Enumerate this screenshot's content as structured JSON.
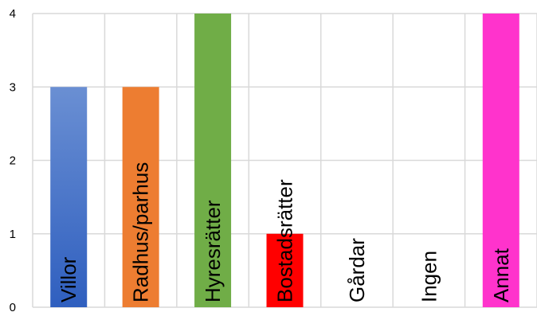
{
  "chart_data": {
    "type": "bar",
    "title": "",
    "xlabel": "",
    "ylabel": "",
    "ylim": [
      0,
      4
    ],
    "yticks": [
      0,
      1,
      2,
      3,
      4
    ],
    "grid": true,
    "legend": "none",
    "categories": [
      "Villor",
      "Radhus/parhus",
      "Hyresrätter",
      "Bostadsrätter",
      "Gårdar",
      "Ingen",
      "Annat"
    ],
    "values": [
      3,
      3,
      4,
      1,
      0,
      0,
      4
    ],
    "colors": [
      "#4472C4",
      "#ED7D31",
      "#70AD47",
      "#FF0000",
      "#FFFFFF",
      "#FFFFFF",
      "#FF33CC"
    ]
  }
}
